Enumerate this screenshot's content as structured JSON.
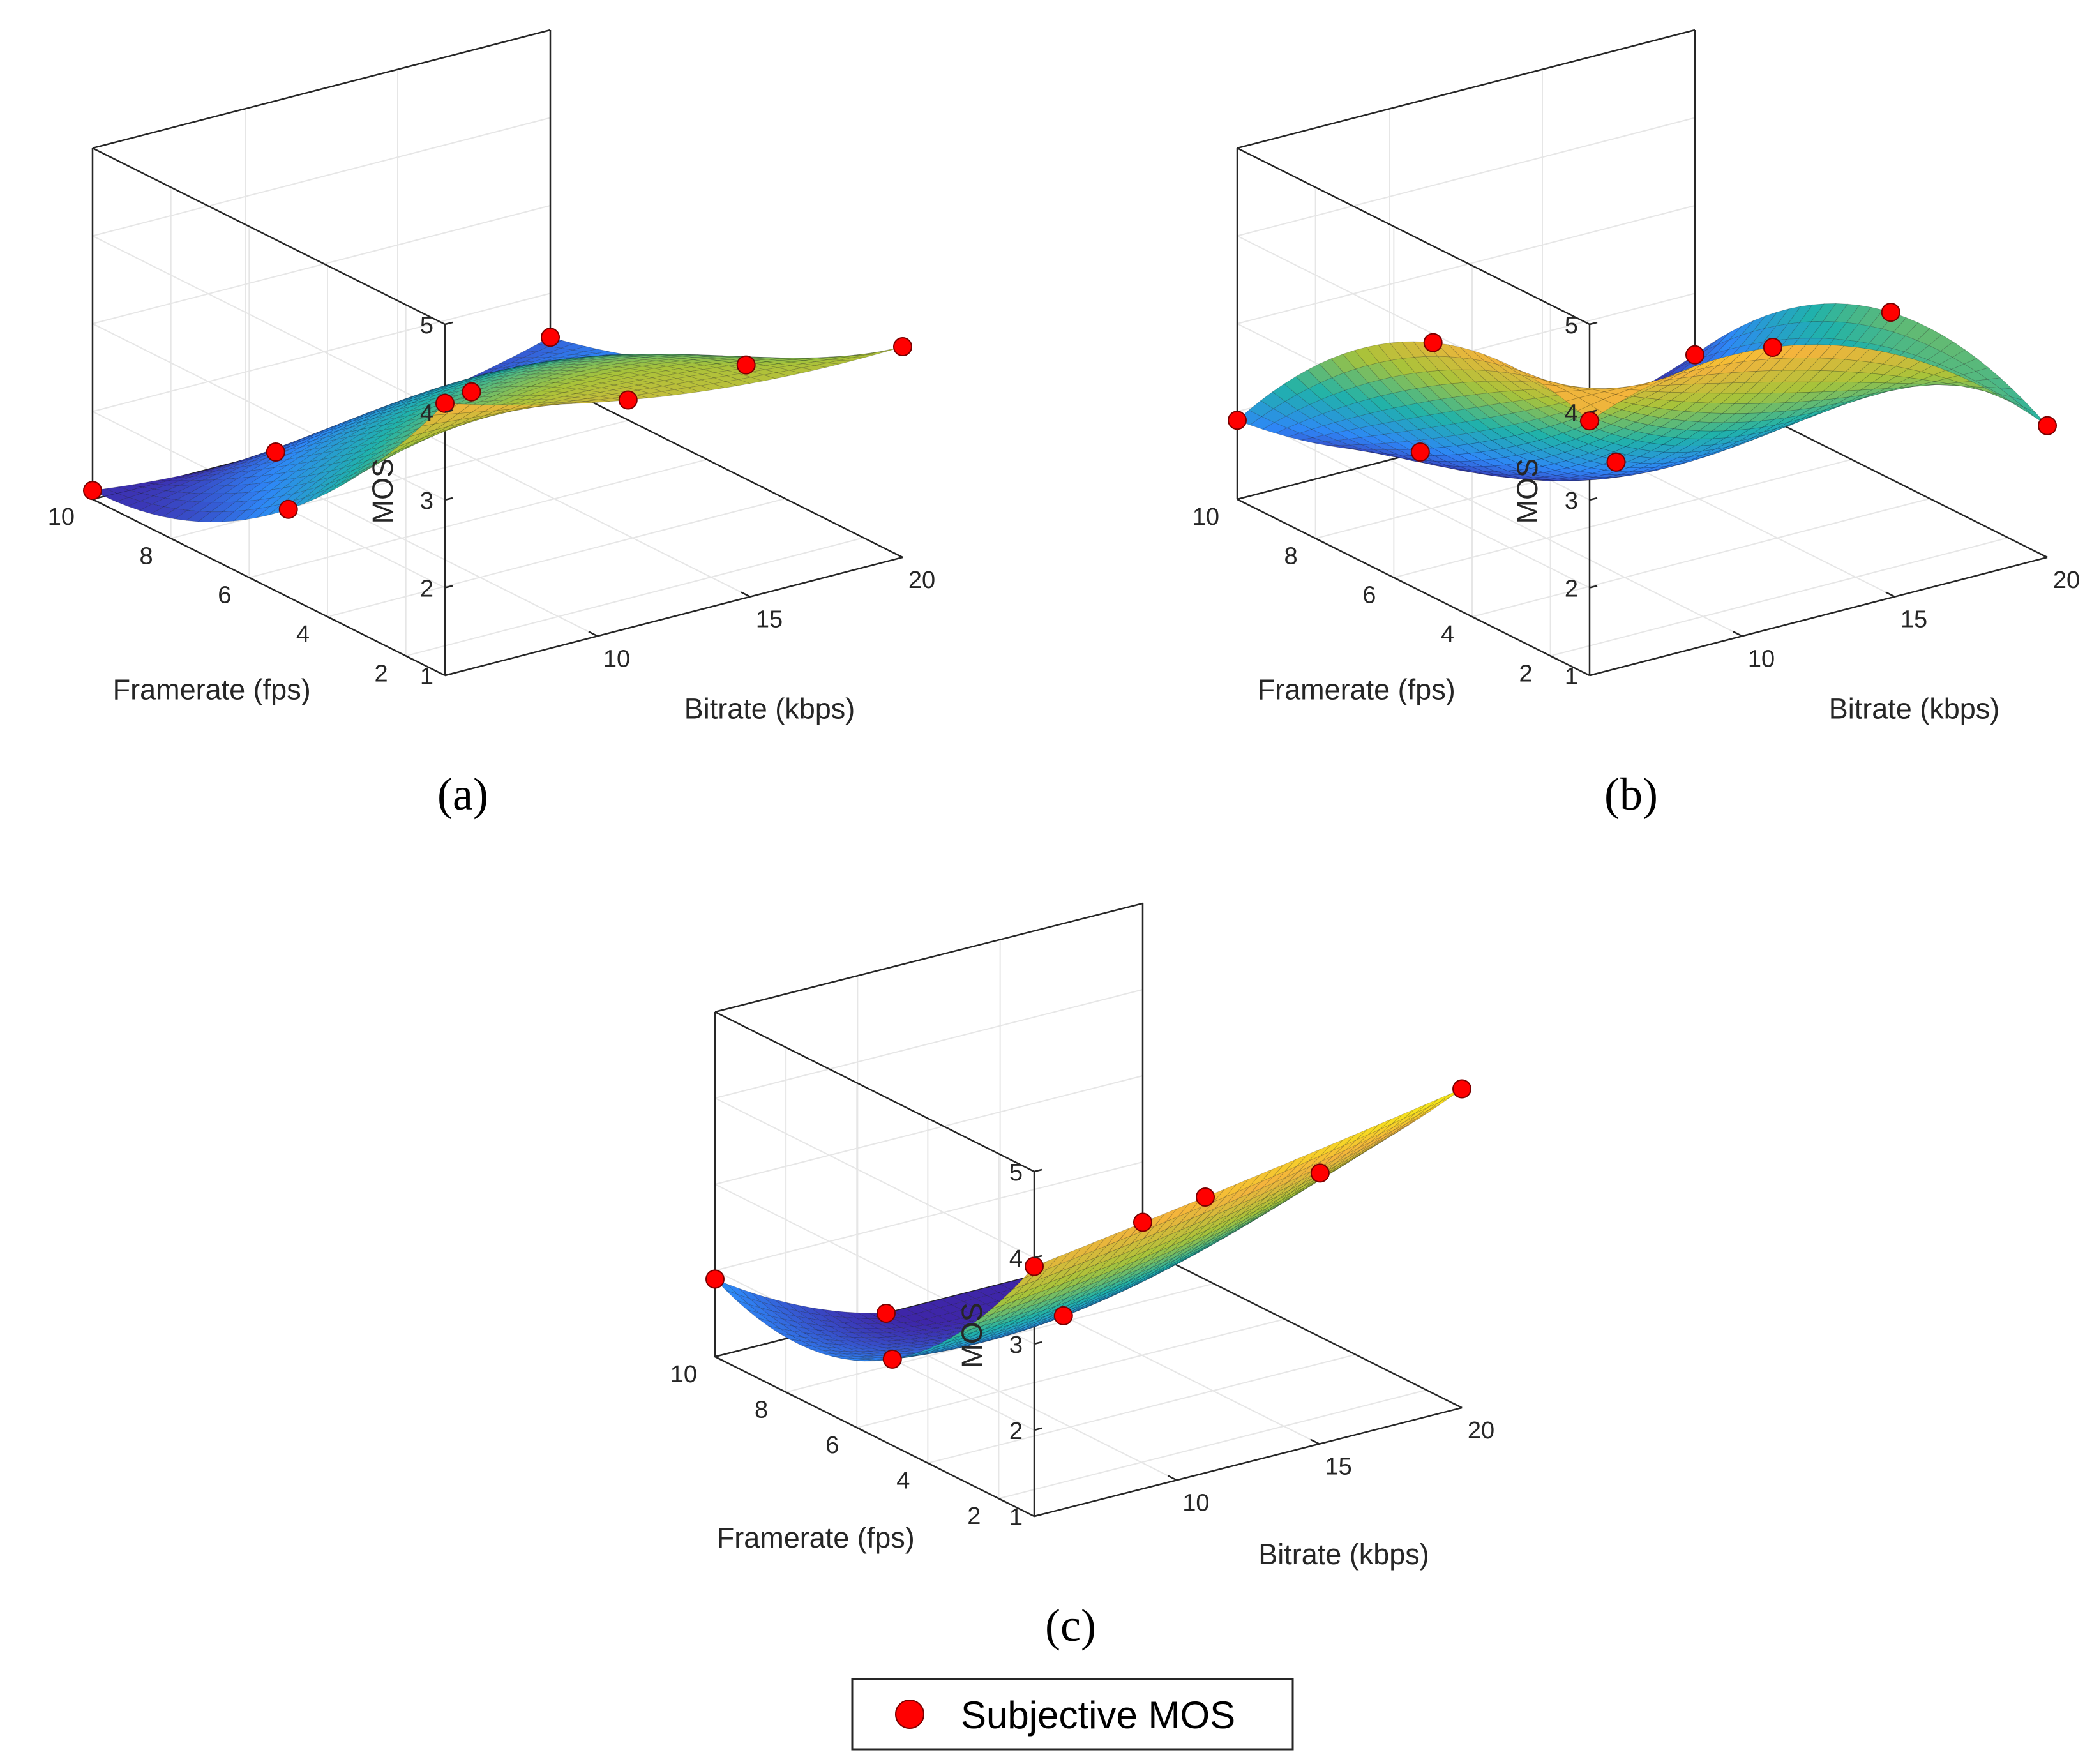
{
  "chart_data": [
    {
      "panel": "(a)",
      "type": "surface",
      "xlabel": "Bitrate (kbps)",
      "ylabel": "Framerate (fps)",
      "zlabel": "MOS",
      "xlim": [
        5,
        20
      ],
      "ylim": [
        1,
        10
      ],
      "zlim": [
        1,
        5
      ],
      "x_ticks": [
        10,
        15,
        20
      ],
      "y_ticks": [
        2,
        4,
        6,
        8,
        10
      ],
      "z_ticks": [
        1,
        2,
        3,
        4,
        5
      ],
      "points": [
        {
          "bitrate": 5,
          "framerate": 10,
          "mos": 1.1
        },
        {
          "bitrate": 5,
          "framerate": 5,
          "mos": 2.0
        },
        {
          "bitrate": 5,
          "framerate": 1,
          "mos": 4.1
        },
        {
          "bitrate": 11,
          "framerate": 10,
          "mos": 1.0
        },
        {
          "bitrate": 11,
          "framerate": 5,
          "mos": 2.8
        },
        {
          "bitrate": 11,
          "framerate": 1,
          "mos": 3.6
        },
        {
          "bitrate": 20,
          "framerate": 10,
          "mos": 1.5
        },
        {
          "bitrate": 20,
          "framerate": 5,
          "mos": 2.3
        },
        {
          "bitrate": 20,
          "framerate": 1,
          "mos": 3.4
        }
      ]
    },
    {
      "panel": "(b)",
      "type": "surface",
      "xlabel": "Bitrate (kbps)",
      "ylabel": "Framerate (fps)",
      "zlabel": "MOS",
      "xlim": [
        5,
        20
      ],
      "ylim": [
        1,
        10
      ],
      "zlim": [
        1,
        5
      ],
      "x_ticks": [
        10,
        15,
        20
      ],
      "y_ticks": [
        2,
        4,
        6,
        8,
        10
      ],
      "z_ticks": [
        1,
        2,
        3,
        4,
        5
      ],
      "points": [
        {
          "bitrate": 5,
          "framerate": 10,
          "mos": 1.9
        },
        {
          "bitrate": 5,
          "framerate": 5,
          "mos": 3.9
        },
        {
          "bitrate": 5,
          "framerate": 1,
          "mos": 3.9
        },
        {
          "bitrate": 11,
          "framerate": 10,
          "mos": 1.0
        },
        {
          "bitrate": 11,
          "framerate": 5,
          "mos": 2.0
        },
        {
          "bitrate": 11,
          "framerate": 1,
          "mos": 4.2
        },
        {
          "bitrate": 20,
          "framerate": 10,
          "mos": 1.3
        },
        {
          "bitrate": 20,
          "framerate": 5,
          "mos": 2.9
        },
        {
          "bitrate": 20,
          "framerate": 1,
          "mos": 2.5
        }
      ]
    },
    {
      "panel": "(c)",
      "type": "surface",
      "xlabel": "Bitrate (kbps)",
      "ylabel": "Framerate (fps)",
      "zlabel": "MOS",
      "xlim": [
        5,
        20
      ],
      "ylim": [
        1,
        10
      ],
      "zlim": [
        1,
        5
      ],
      "x_ticks": [
        10,
        15,
        20
      ],
      "y_ticks": [
        2,
        4,
        6,
        8,
        10
      ],
      "z_ticks": [
        1,
        2,
        3,
        4,
        5
      ],
      "points": [
        {
          "bitrate": 5,
          "framerate": 10,
          "mos": 1.9
        },
        {
          "bitrate": 5,
          "framerate": 5,
          "mos": 2.0
        },
        {
          "bitrate": 5,
          "framerate": 1,
          "mos": 3.9
        },
        {
          "bitrate": 11,
          "framerate": 10,
          "mos": 1.0
        },
        {
          "bitrate": 11,
          "framerate": 5,
          "mos": 2.0
        },
        {
          "bitrate": 11,
          "framerate": 1,
          "mos": 4.2
        },
        {
          "bitrate": 20,
          "framerate": 10,
          "mos": 1.3
        },
        {
          "bitrate": 20,
          "framerate": 5,
          "mos": 2.9
        },
        {
          "bitrate": 20,
          "framerate": 1,
          "mos": 4.7
        }
      ]
    }
  ],
  "legend": {
    "label": "Subjective MOS",
    "marker_color": "#ff0000"
  },
  "colors": {
    "axis": "#262626",
    "grid": "#e6e6e6",
    "marker": "#ff0000",
    "colormap": [
      "#3e26a8",
      "#2e87f7",
      "#20b2aa",
      "#a8c33a",
      "#f4b43c",
      "#f9fb0e"
    ]
  }
}
